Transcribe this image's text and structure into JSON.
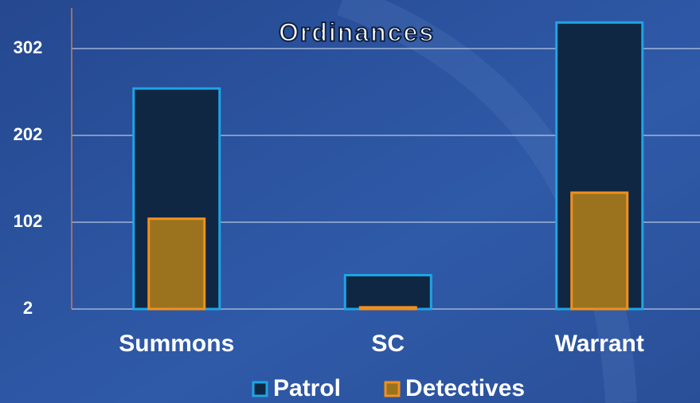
{
  "chart_data": {
    "type": "bar",
    "title": "Ordinances",
    "categories": [
      "Summons",
      "SC",
      "Warrant"
    ],
    "series": [
      {
        "name": "Patrol",
        "color": "#0f2742",
        "edge": "#1ea4e6",
        "values": [
          256,
          41,
          332
        ]
      },
      {
        "name": "Detectives",
        "color": "#9b731f",
        "edge": "#f0901e",
        "values": [
          106,
          4,
          136
        ]
      }
    ],
    "ylim": [
      2,
      352
    ],
    "yticks": [
      2,
      102,
      202,
      302
    ],
    "grid": true,
    "legend": "bottom"
  }
}
